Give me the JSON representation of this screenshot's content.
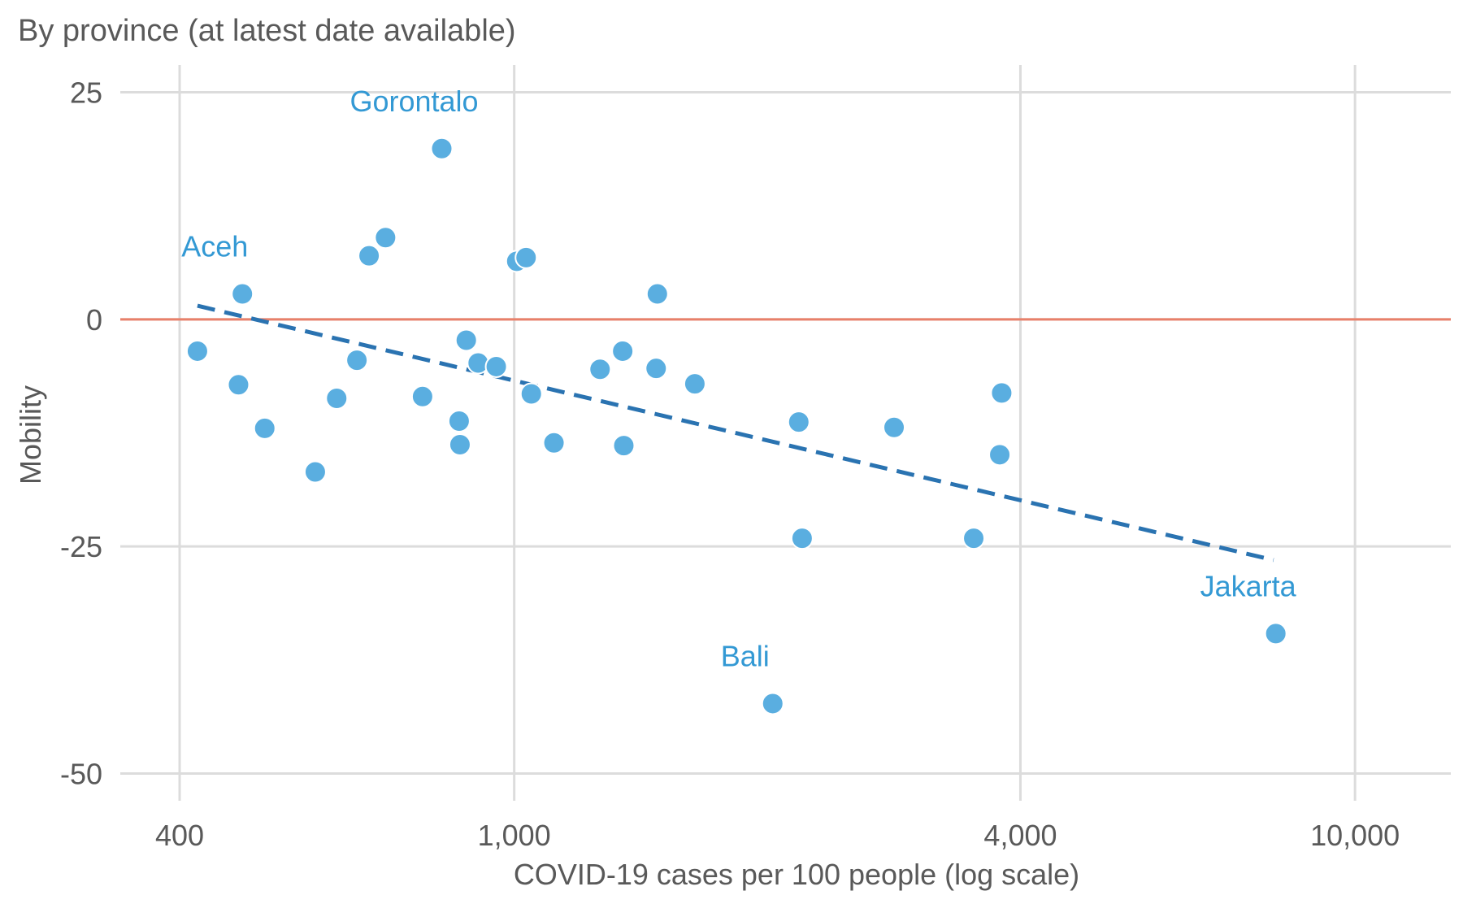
{
  "chart_data": {
    "type": "scatter",
    "subtitle": "By province (at latest date available)",
    "xlabel": "COVID-19 cases per 100 people (log scale)",
    "ylabel": "Mobility",
    "x_scale": "log",
    "xlim": [
      340,
      13000
    ],
    "ylim": [
      -53,
      28
    ],
    "x_ticks": [
      {
        "value": 400,
        "label": "400"
      },
      {
        "value": 1000,
        "label": "1,000"
      },
      {
        "value": 4000,
        "label": "4,000"
      },
      {
        "value": 10000,
        "label": "10,000"
      }
    ],
    "y_ticks": [
      {
        "value": 25,
        "label": "25"
      },
      {
        "value": 0,
        "label": "0"
      },
      {
        "value": -25,
        "label": "-25"
      },
      {
        "value": -50,
        "label": "-50"
      }
    ],
    "reference_line": {
      "y": 0,
      "color": "#e8806a"
    },
    "trend_line": {
      "x": [
        420,
        8000
      ],
      "y": [
        1.5,
        -26.5
      ],
      "style": "dashed",
      "color": "#2a73b1"
    },
    "point_color": "#5aaee0",
    "points": [
      {
        "x": 420,
        "y": -3.5
      },
      {
        "x": 470,
        "y": -7.2
      },
      {
        "x": 475,
        "y": 2.8,
        "label": "Aceh"
      },
      {
        "x": 505,
        "y": -12
      },
      {
        "x": 580,
        "y": -16.8
      },
      {
        "x": 615,
        "y": -8.7
      },
      {
        "x": 650,
        "y": -4.5
      },
      {
        "x": 672,
        "y": 7
      },
      {
        "x": 703,
        "y": 9
      },
      {
        "x": 778,
        "y": -8.5
      },
      {
        "x": 820,
        "y": 18.8,
        "label": "Gorontalo"
      },
      {
        "x": 860,
        "y": -11.2
      },
      {
        "x": 862,
        "y": -13.8
      },
      {
        "x": 877,
        "y": -2.3
      },
      {
        "x": 906,
        "y": -4.8
      },
      {
        "x": 952,
        "y": -5.2
      },
      {
        "x": 1007,
        "y": 6.4
      },
      {
        "x": 1033,
        "y": 6.8
      },
      {
        "x": 1048,
        "y": -8.2
      },
      {
        "x": 1115,
        "y": -13.6
      },
      {
        "x": 1265,
        "y": -5.5
      },
      {
        "x": 1346,
        "y": -3.5
      },
      {
        "x": 1350,
        "y": -13.9
      },
      {
        "x": 1480,
        "y": 2.8
      },
      {
        "x": 1475,
        "y": -5.4
      },
      {
        "x": 1640,
        "y": -7.1
      },
      {
        "x": 2030,
        "y": -42.3,
        "label": "Bali"
      },
      {
        "x": 2180,
        "y": -11.3
      },
      {
        "x": 2200,
        "y": -24.1
      },
      {
        "x": 2830,
        "y": -11.9
      },
      {
        "x": 3520,
        "y": -24.1
      },
      {
        "x": 3780,
        "y": -14.9
      },
      {
        "x": 3800,
        "y": -8.1
      },
      {
        "x": 8050,
        "y": -34.6,
        "label": "Jakarta"
      }
    ],
    "annotation_color": "#3399d4"
  }
}
